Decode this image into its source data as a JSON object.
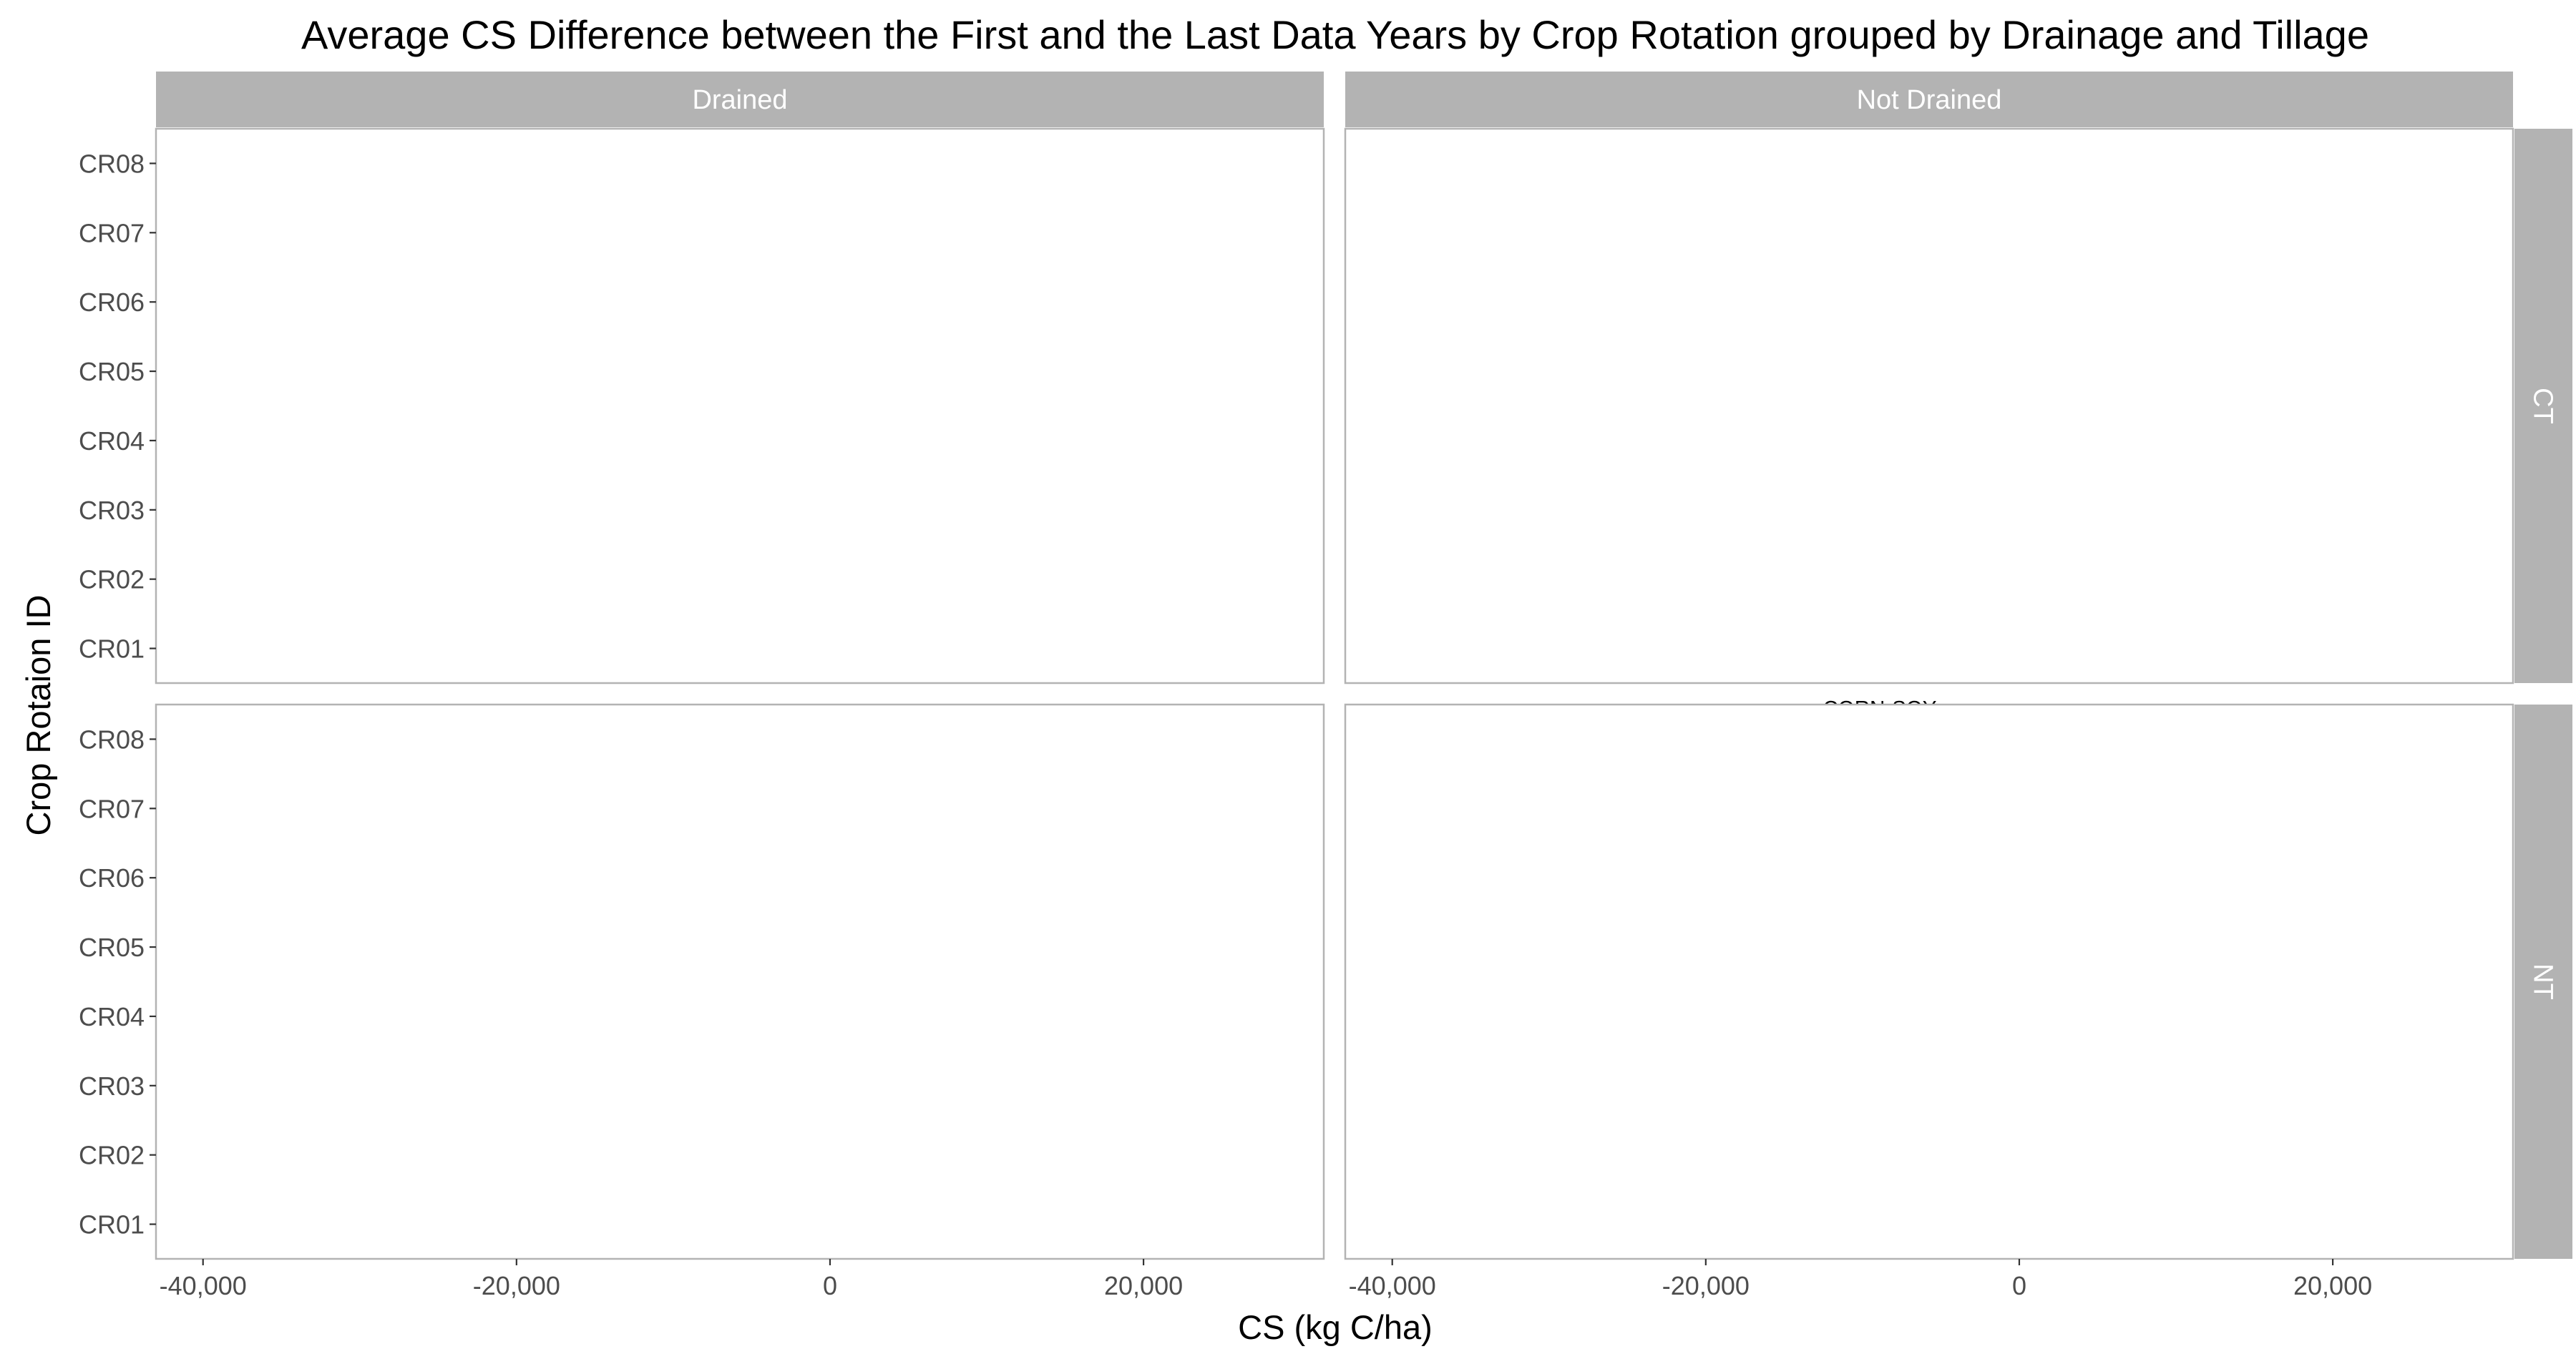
{
  "chart_data": {
    "type": "bar",
    "orientation": "horizontal",
    "title": "Average CS Difference between the First and the Last Data Years by Crop Rotation grouped by Drainage and Tillage",
    "xlabel": "CS (kg C/ha)",
    "ylabel": "Crop Rotaion ID",
    "xlim": [
      -43000,
      31500
    ],
    "x_ticks": [
      -40000,
      -20000,
      0,
      20000
    ],
    "x_tick_labels": [
      "-40,000",
      "-20,000",
      "0",
      "20,000"
    ],
    "categories": [
      "CR01",
      "CR02",
      "CR03",
      "CR04",
      "CR05",
      "CR06",
      "CR07",
      "CR08"
    ],
    "facet_columns": [
      "Drained",
      "Not Drained"
    ],
    "facet_rows": [
      "CT",
      "NT"
    ],
    "grid": true,
    "colors": {
      "default_bar": "#636363",
      "highlight_bar": "#FFA500",
      "strip": "#B3B3B3"
    },
    "panels": [
      {
        "column": "Drained",
        "row": "CT",
        "bars": [
          {
            "id": "CR01",
            "value": 3000,
            "label": [
              "continuous",
              "CORN"
            ]
          },
          {
            "id": "CR02",
            "value": -100,
            "label": [
              "continuous",
              "SOY"
            ]
          },
          {
            "id": "CR05",
            "value": -6900,
            "label": [
              "CORN-SOY"
            ]
          },
          {
            "id": "CR07",
            "value": -31800,
            "label": [
              "CORN-SOY-",
              "WHEAT"
            ]
          }
        ]
      },
      {
        "column": "Not Drained",
        "row": "CT",
        "bars": [
          {
            "id": "CR01",
            "value": -10000,
            "label": [
              "continuous",
              "CORN"
            ]
          },
          {
            "id": "CR02",
            "value": 12300,
            "label": [
              "continuous",
              "SOY"
            ]
          },
          {
            "id": "CR03",
            "value": -7400,
            "label": [
              "continuous",
              "CORN with",
              "RYE cover"
            ]
          },
          {
            "id": "CR04",
            "value": 12500,
            "label": [
              "continuous",
              "SOY with",
              "RYE cover"
            ]
          },
          {
            "id": "CR05",
            "value": -10100,
            "label": [
              "CORN-SOY"
            ],
            "highlight": true
          },
          {
            "id": "CR06",
            "value": -12700,
            "label": [
              "CORN-SOY",
              "with RYE",
              "cover"
            ]
          },
          {
            "id": "CR07",
            "value": 15700,
            "label": [
              "CORN-SOY-",
              "WHEAT"
            ]
          }
        ]
      },
      {
        "column": "Drained",
        "row": "NT",
        "bars": [
          {
            "id": "CR01",
            "value": 4900,
            "label": [
              "continuous",
              "CORN"
            ]
          },
          {
            "id": "CR02",
            "value": -5500,
            "label": [
              "continuous",
              "SOY"
            ]
          },
          {
            "id": "CR05",
            "value": 5000,
            "label": [
              "CORN-SOY"
            ]
          },
          {
            "id": "CR07",
            "value": 2600,
            "label": [
              "CORN-SOY-",
              "WHEAT"
            ]
          }
        ]
      },
      {
        "column": "Not Drained",
        "row": "NT",
        "bars": [
          {
            "id": "CR01",
            "value": 5100,
            "label": [
              "continuous",
              "CORN"
            ]
          },
          {
            "id": "CR02",
            "value": 18700,
            "label": [
              "continuous",
              "SOY"
            ]
          },
          {
            "id": "CR03",
            "value": -7900,
            "label": [
              "continuous",
              "CORN with",
              "RYE cover"
            ]
          },
          {
            "id": "CR04",
            "value": 13200,
            "label": [
              "continuous",
              "SOY with",
              "RYE cover"
            ]
          },
          {
            "id": "CR05",
            "value": 2400,
            "label": [
              "CORN-SOY"
            ]
          },
          {
            "id": "CR06",
            "value": 1200,
            "label": [
              "CORN-SOY",
              "with RYE",
              "cover"
            ]
          },
          {
            "id": "CR07",
            "value": 16300,
            "label": [
              "CORN-SOY-",
              "WHEAT"
            ]
          },
          {
            "id": "CR08",
            "value": -4900,
            "label": [
              "CORN-SOY-",
              "WHEAT/RED",
              "CLOVER"
            ]
          }
        ]
      }
    ]
  }
}
